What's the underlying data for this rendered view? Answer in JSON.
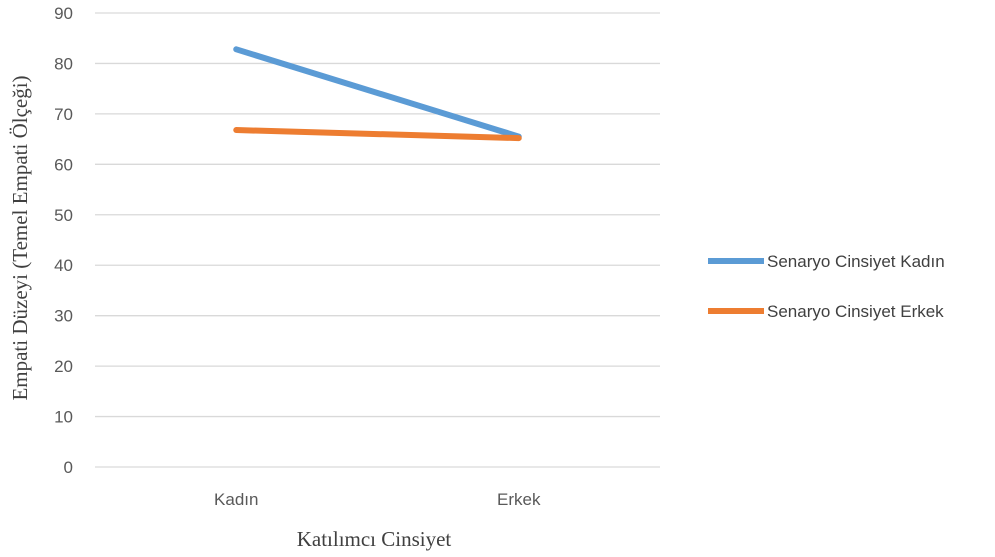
{
  "chart_data": {
    "type": "line",
    "categories": [
      "Kadın",
      "Erkek"
    ],
    "series": [
      {
        "name": "Senaryo Cinsiyet Kadın",
        "values": [
          82.8,
          65.5
        ],
        "color": "#5B9BD5"
      },
      {
        "name": "Senaryo Cinsiyet Erkek",
        "values": [
          66.8,
          65.2
        ],
        "color": "#ED7D31"
      }
    ],
    "xlabel": "Katılımcı Cinsiyet",
    "ylabel": "Empati Düzeyi (Temel Empati Ölçeği)",
    "ylim": [
      0,
      90
    ],
    "yticks": [
      0,
      10,
      20,
      30,
      40,
      50,
      60,
      70,
      80,
      90
    ],
    "grid": true,
    "legend_position": "right"
  }
}
